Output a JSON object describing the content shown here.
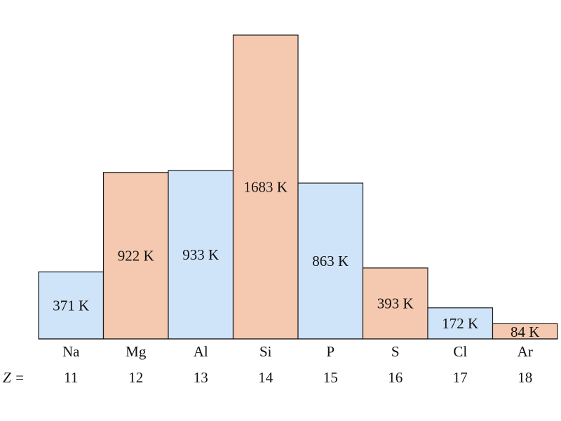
{
  "chart_data": {
    "type": "bar",
    "categories": [
      "Na",
      "Mg",
      "Al",
      "Si",
      "P",
      "S",
      "Cl",
      "Ar"
    ],
    "atomic_numbers": [
      "11",
      "12",
      "13",
      "14",
      "15",
      "16",
      "17",
      "18"
    ],
    "values": [
      371,
      922,
      933,
      1683,
      863,
      393,
      172,
      84
    ],
    "value_labels": [
      "371 K",
      "922 K",
      "933 K",
      "1683 K",
      "863 K",
      "393 K",
      "172 K",
      "84 K"
    ],
    "z_label": "Z =",
    "ylim": [
      0,
      1683
    ],
    "grid": false,
    "colors": {
      "blue": "#cfe4f8",
      "peach": "#f5c9b0",
      "stroke": "#1a1a1a"
    },
    "bar_color_sequence": [
      "blue",
      "peach",
      "blue",
      "peach",
      "blue",
      "peach",
      "blue",
      "peach"
    ]
  }
}
